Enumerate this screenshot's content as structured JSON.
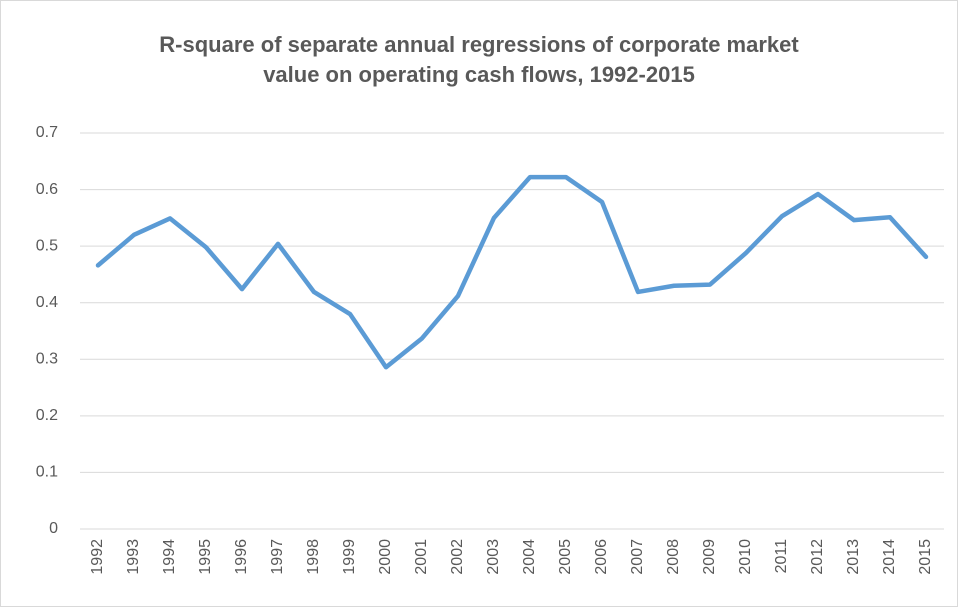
{
  "chart_data": {
    "type": "line",
    "title": "R-square of separate annual regressions of corporate market value on operating cash flows, 1992-2015",
    "categories": [
      "1992",
      "1993",
      "1994",
      "1995",
      "1996",
      "1997",
      "1998",
      "1999",
      "2000",
      "2001",
      "2002",
      "2003",
      "2004",
      "2005",
      "2006",
      "2007",
      "2008",
      "2009",
      "2010",
      "2011",
      "2012",
      "2013",
      "2014",
      "2015"
    ],
    "series": [
      {
        "color": "#5b9bd5",
        "values": [
          0.466,
          0.52,
          0.549,
          0.498,
          0.424,
          0.504,
          0.419,
          0.38,
          0.286,
          0.337,
          0.412,
          0.55,
          0.622,
          0.622,
          0.578,
          0.419,
          0.43,
          0.432,
          0.488,
          0.553,
          0.592,
          0.546,
          0.551,
          0.481
        ]
      }
    ],
    "ylim": [
      0,
      0.7
    ],
    "yticks": [
      0,
      0.1,
      0.2,
      0.3,
      0.4,
      0.5,
      0.6,
      0.7
    ],
    "grid": true
  }
}
